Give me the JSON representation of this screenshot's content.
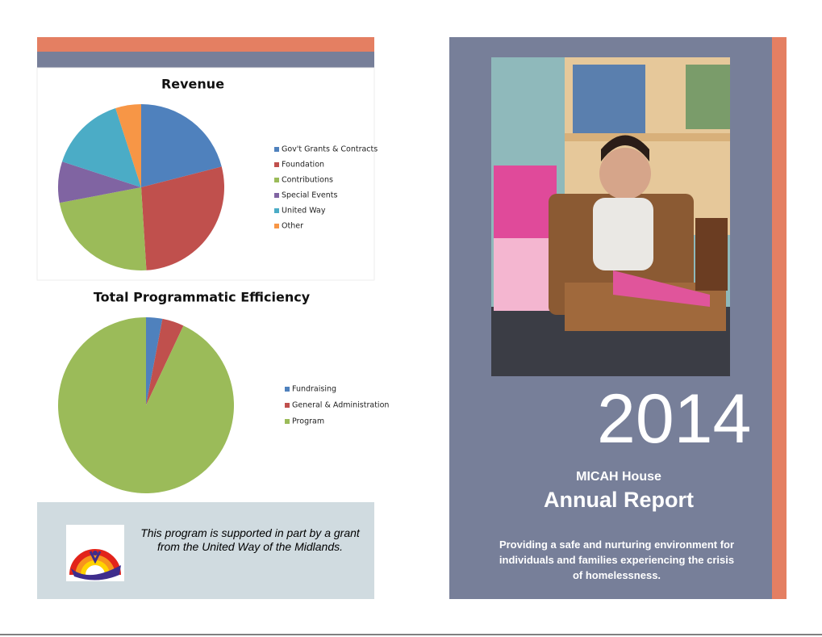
{
  "chart_data": [
    {
      "type": "pie",
      "title": "Revenue",
      "categories": [
        "Gov't Grants & Contracts",
        "Foundation",
        "Contributions",
        "Special Events",
        "United Way",
        "Other"
      ],
      "values": [
        21,
        28,
        23,
        8,
        15,
        5
      ],
      "colors": [
        "#4f81bd",
        "#c0504d",
        "#9bbb59",
        "#8064a2",
        "#4bacc6",
        "#f79646"
      ]
    },
    {
      "type": "pie",
      "title": "Total Programmatic Efficiency",
      "categories": [
        "Fundraising",
        "General & Administration",
        "Program"
      ],
      "values": [
        3,
        4,
        93
      ],
      "colors": [
        "#4f81bd",
        "#c0504d",
        "#9bbb59"
      ]
    }
  ],
  "notice": "This program is supported in part by a grant from the United Way of the Midlands.",
  "cover": {
    "year": "2014",
    "organization": "MICAH House",
    "title": "Annual Report",
    "tagline": "Providing a safe and nurturing environment for individuals and families experiencing the crisis of homelessness."
  }
}
